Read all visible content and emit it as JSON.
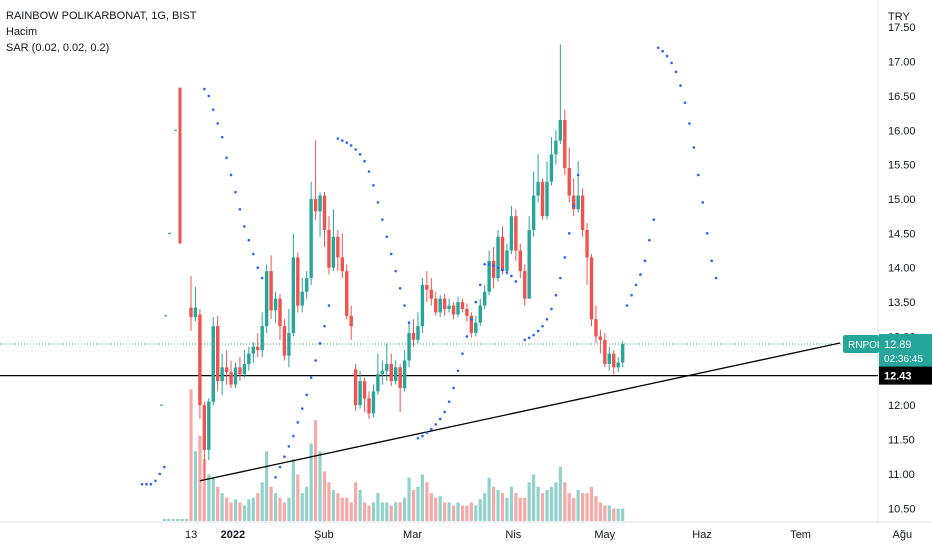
{
  "legend": {
    "title": "RAINBOW POLIKARBONAT, 1G, BIST",
    "volume_label": "Hacim",
    "sar_label": "SAR (0.02, 0.02, 0.2)"
  },
  "chart_data": {
    "type": "candlestick",
    "currency": "TRY",
    "y_ticks": [
      "17.50",
      "17.00",
      "16.50",
      "16.00",
      "15.50",
      "15.00",
      "14.50",
      "14.00",
      "13.50",
      "13.00",
      "12.50",
      "12.00",
      "11.50",
      "11.00",
      "10.50"
    ],
    "ylim": [
      10.3,
      17.75
    ],
    "x_ticks": [
      {
        "label": "13",
        "bold": false,
        "i": 0
      },
      {
        "label": "2022",
        "bold": true,
        "i": 8
      },
      {
        "label": "Şub",
        "bold": false,
        "i": 29
      },
      {
        "label": "Mar",
        "bold": false,
        "i": 49
      },
      {
        "label": "Nis",
        "bold": false,
        "i": 72
      },
      {
        "label": "May",
        "bold": false,
        "i": 92
      },
      {
        "label": "Haz",
        "bold": false,
        "i": 114
      },
      {
        "label": "Tem",
        "bold": false,
        "i": 136
      },
      {
        "label": "Ağu",
        "bold": false,
        "i": 159
      }
    ],
    "symbol_badge": "RNPOL",
    "last_price": "12.89",
    "countdown": "02:36:45",
    "hline_label": "12.43",
    "hline_value": 12.43,
    "trendline": [
      {
        "i": 2,
        "v": 10.9
      },
      {
        "i": 157,
        "v": 12.89
      }
    ],
    "first_bar": {
      "open": 16.62,
      "close": 14.35,
      "high": 16.62,
      "low": 14.35
    },
    "ohlc": [
      [
        13.42,
        13.28,
        13.88,
        13.08
      ],
      [
        13.28,
        13.42,
        13.72,
        13.22
      ],
      [
        13.32,
        12.0,
        13.4,
        11.8
      ],
      [
        12.0,
        11.35,
        12.05,
        10.92
      ],
      [
        11.35,
        12.05,
        12.1,
        11.2
      ],
      [
        12.05,
        13.15,
        13.28,
        12.0
      ],
      [
        13.15,
        12.35,
        13.3,
        12.2
      ],
      [
        12.35,
        12.55,
        12.75,
        12.15
      ],
      [
        12.55,
        12.48,
        12.8,
        12.3
      ],
      [
        12.48,
        12.3,
        12.65,
        12.25
      ],
      [
        12.3,
        12.55,
        12.62,
        12.25
      ],
      [
        12.55,
        12.45,
        12.7,
        12.35
      ],
      [
        12.45,
        12.6,
        12.8,
        12.4
      ],
      [
        12.6,
        12.75,
        12.85,
        12.5
      ],
      [
        12.75,
        12.85,
        12.92,
        12.62
      ],
      [
        12.85,
        12.8,
        13.05,
        12.7
      ],
      [
        12.8,
        13.15,
        13.35,
        12.7
      ],
      [
        13.15,
        13.95,
        14.05,
        13.05
      ],
      [
        13.95,
        13.38,
        14.18,
        13.25
      ],
      [
        13.38,
        13.55,
        13.65,
        13.2
      ],
      [
        13.55,
        13.15,
        13.62,
        12.95
      ],
      [
        13.15,
        12.72,
        13.25,
        12.65
      ],
      [
        12.72,
        13.05,
        13.4,
        12.55
      ],
      [
        13.05,
        14.15,
        14.5,
        13.0
      ],
      [
        14.15,
        13.45,
        14.22,
        13.35
      ],
      [
        13.45,
        13.65,
        13.85,
        13.35
      ],
      [
        13.65,
        13.85,
        13.95,
        13.55
      ],
      [
        13.85,
        15.0,
        15.25,
        13.75
      ],
      [
        15.0,
        14.82,
        15.85,
        14.7
      ],
      [
        14.82,
        15.05,
        15.1,
        14.45
      ],
      [
        15.05,
        14.55,
        15.1,
        14.3
      ],
      [
        14.55,
        14.0,
        14.75,
        13.9
      ],
      [
        14.0,
        14.45,
        14.85,
        13.95
      ],
      [
        14.45,
        14.15,
        14.55,
        13.95
      ],
      [
        14.15,
        13.95,
        14.5,
        13.85
      ],
      [
        13.95,
        13.3,
        14.05,
        13.25
      ],
      [
        13.3,
        13.15,
        13.45,
        12.95
      ],
      [
        12.52,
        12.0,
        12.6,
        11.92
      ],
      [
        12.0,
        12.35,
        12.5,
        11.95
      ],
      [
        12.35,
        12.1,
        12.4,
        11.9
      ],
      [
        12.1,
        11.88,
        12.2,
        11.8
      ],
      [
        11.88,
        12.2,
        12.3,
        11.82
      ],
      [
        12.2,
        12.45,
        12.75,
        12.15
      ],
      [
        12.45,
        12.5,
        12.65,
        12.3
      ],
      [
        12.5,
        12.6,
        12.9,
        12.35
      ],
      [
        12.6,
        12.35,
        12.75,
        12.28
      ],
      [
        12.35,
        12.55,
        12.65,
        12.3
      ],
      [
        12.55,
        12.25,
        12.6,
        11.9
      ],
      [
        12.25,
        12.65,
        12.8,
        12.2
      ],
      [
        12.65,
        13.05,
        13.2,
        12.55
      ],
      [
        13.05,
        12.95,
        13.25,
        12.85
      ],
      [
        12.95,
        13.15,
        13.35,
        12.9
      ],
      [
        13.15,
        13.75,
        13.85,
        13.05
      ],
      [
        13.75,
        13.68,
        13.95,
        13.5
      ],
      [
        13.68,
        13.55,
        13.85,
        13.45
      ],
      [
        13.55,
        13.35,
        13.65,
        13.3
      ],
      [
        13.35,
        13.55,
        13.6,
        13.28
      ],
      [
        13.55,
        13.4,
        13.62,
        13.3
      ],
      [
        13.4,
        13.45,
        13.55,
        13.35
      ],
      [
        13.45,
        13.32,
        13.5,
        13.25
      ],
      [
        13.32,
        13.5,
        13.58,
        13.28
      ],
      [
        13.5,
        13.4,
        13.55,
        13.35
      ],
      [
        13.4,
        13.3,
        13.48,
        13.22
      ],
      [
        13.3,
        13.05,
        13.35,
        12.98
      ],
      [
        13.05,
        13.2,
        13.3,
        13.0
      ],
      [
        13.2,
        13.45,
        13.55,
        13.15
      ],
      [
        13.45,
        13.65,
        13.75,
        13.4
      ],
      [
        13.65,
        14.1,
        14.25,
        13.6
      ],
      [
        14.1,
        13.85,
        14.3,
        13.7
      ],
      [
        13.85,
        14.45,
        14.55,
        13.8
      ],
      [
        14.45,
        13.95,
        14.6,
        13.9
      ],
      [
        13.95,
        14.25,
        14.35,
        13.9
      ],
      [
        14.25,
        14.75,
        14.9,
        14.2
      ],
      [
        14.75,
        14.25,
        14.85,
        14.1
      ],
      [
        14.25,
        13.95,
        14.35,
        13.85
      ],
      [
        13.95,
        13.55,
        14.05,
        13.45
      ],
      [
        13.55,
        14.55,
        14.75,
        13.55
      ],
      [
        14.55,
        15.05,
        15.4,
        14.45
      ],
      [
        15.05,
        15.25,
        15.65,
        14.95
      ],
      [
        15.25,
        14.75,
        15.3,
        14.7
      ],
      [
        14.75,
        15.25,
        15.55,
        14.7
      ],
      [
        15.25,
        15.65,
        15.9,
        15.2
      ],
      [
        15.65,
        15.85,
        16.0,
        15.5
      ],
      [
        15.85,
        16.15,
        17.25,
        15.8
      ],
      [
        16.15,
        15.45,
        16.3,
        15.35
      ],
      [
        15.45,
        15.05,
        15.75,
        14.95
      ],
      [
        15.05,
        14.85,
        15.3,
        14.75
      ],
      [
        14.85,
        15.05,
        15.55,
        14.8
      ],
      [
        15.05,
        14.55,
        15.15,
        14.45
      ],
      [
        14.55,
        14.15,
        14.65,
        13.75
      ],
      [
        14.15,
        13.25,
        14.2,
        13.15
      ],
      [
        13.25,
        13.0,
        13.45,
        12.9
      ],
      [
        13.0,
        12.95,
        13.1,
        12.75
      ],
      [
        12.95,
        12.6,
        13.05,
        12.55
      ],
      [
        12.6,
        12.75,
        12.85,
        12.5
      ],
      [
        12.75,
        12.55,
        12.8,
        12.45
      ],
      [
        12.55,
        12.62,
        12.7,
        12.48
      ],
      [
        12.62,
        12.89,
        12.93,
        12.55
      ]
    ],
    "volume": [
      0.85,
      0.45,
      0.55,
      0.4,
      0.3,
      0.28,
      0.22,
      0.18,
      0.15,
      0.12,
      0.14,
      0.12,
      0.1,
      0.14,
      0.15,
      0.18,
      0.25,
      0.45,
      0.22,
      0.18,
      0.15,
      0.12,
      0.15,
      0.4,
      0.3,
      0.18,
      0.22,
      0.5,
      0.65,
      0.45,
      0.32,
      0.25,
      0.2,
      0.18,
      0.15,
      0.15,
      0.12,
      0.25,
      0.2,
      0.12,
      0.1,
      0.12,
      0.18,
      0.12,
      0.12,
      0.1,
      0.12,
      0.12,
      0.15,
      0.28,
      0.2,
      0.22,
      0.3,
      0.25,
      0.18,
      0.15,
      0.16,
      0.12,
      0.12,
      0.1,
      0.12,
      0.1,
      0.1,
      0.12,
      0.1,
      0.14,
      0.18,
      0.28,
      0.22,
      0.2,
      0.18,
      0.15,
      0.22,
      0.18,
      0.15,
      0.15,
      0.25,
      0.3,
      0.22,
      0.18,
      0.2,
      0.22,
      0.25,
      0.35,
      0.25,
      0.18,
      0.15,
      0.2,
      0.18,
      0.18,
      0.22,
      0.16,
      0.12,
      0.1,
      0.1,
      0.08,
      0.08,
      0.08
    ],
    "sar": [
      {
        "i": -11,
        "v": 10.85
      },
      {
        "i": -10,
        "v": 10.85
      },
      {
        "i": -9,
        "v": 10.85
      },
      {
        "i": -8,
        "v": 10.9
      },
      {
        "i": -7,
        "v": 11.0
      },
      {
        "i": -6,
        "v": 11.1
      },
      {
        "i": 3,
        "v": 16.6
      },
      {
        "i": 4,
        "v": 16.5
      },
      {
        "i": 5,
        "v": 16.3
      },
      {
        "i": 6,
        "v": 16.1
      },
      {
        "i": 7,
        "v": 15.9
      },
      {
        "i": 8,
        "v": 15.6
      },
      {
        "i": 9,
        "v": 15.35
      },
      {
        "i": 10,
        "v": 15.1
      },
      {
        "i": 11,
        "v": 14.85
      },
      {
        "i": 12,
        "v": 14.6
      },
      {
        "i": 13,
        "v": 14.4
      },
      {
        "i": 14,
        "v": 14.2
      },
      {
        "i": 15,
        "v": 14.0
      },
      {
        "i": 16,
        "v": 13.85
      },
      {
        "i": 19,
        "v": 10.95
      },
      {
        "i": 20,
        "v": 11.1
      },
      {
        "i": 21,
        "v": 11.25
      },
      {
        "i": 22,
        "v": 11.4
      },
      {
        "i": 23,
        "v": 11.55
      },
      {
        "i": 24,
        "v": 11.75
      },
      {
        "i": 25,
        "v": 11.95
      },
      {
        "i": 26,
        "v": 12.15
      },
      {
        "i": 27,
        "v": 12.4
      },
      {
        "i": 28,
        "v": 12.65
      },
      {
        "i": 29,
        "v": 12.9
      },
      {
        "i": 30,
        "v": 13.15
      },
      {
        "i": 31,
        "v": 13.45
      },
      {
        "i": 33,
        "v": 15.88
      },
      {
        "i": 34,
        "v": 15.85
      },
      {
        "i": 35,
        "v": 15.82
      },
      {
        "i": 36,
        "v": 15.78
      },
      {
        "i": 37,
        "v": 15.72
      },
      {
        "i": 38,
        "v": 15.65
      },
      {
        "i": 39,
        "v": 15.55
      },
      {
        "i": 40,
        "v": 15.4
      },
      {
        "i": 41,
        "v": 15.2
      },
      {
        "i": 42,
        "v": 14.95
      },
      {
        "i": 43,
        "v": 14.7
      },
      {
        "i": 44,
        "v": 14.45
      },
      {
        "i": 45,
        "v": 14.2
      },
      {
        "i": 46,
        "v": 13.95
      },
      {
        "i": 47,
        "v": 13.7
      },
      {
        "i": 48,
        "v": 13.45
      },
      {
        "i": 49,
        "v": 13.2
      },
      {
        "i": 51,
        "v": 11.52
      },
      {
        "i": 52,
        "v": 11.55
      },
      {
        "i": 53,
        "v": 11.6
      },
      {
        "i": 54,
        "v": 11.65
      },
      {
        "i": 55,
        "v": 11.72
      },
      {
        "i": 56,
        "v": 11.8
      },
      {
        "i": 57,
        "v": 11.9
      },
      {
        "i": 58,
        "v": 12.05
      },
      {
        "i": 59,
        "v": 12.25
      },
      {
        "i": 60,
        "v": 12.5
      },
      {
        "i": 61,
        "v": 12.75
      },
      {
        "i": 62,
        "v": 13.0
      },
      {
        "i": 63,
        "v": 13.25
      },
      {
        "i": 64,
        "v": 13.5
      },
      {
        "i": 65,
        "v": 13.75
      },
      {
        "i": 66,
        "v": 14.05
      },
      {
        "i": 67,
        "v": 14.05
      },
      {
        "i": 68,
        "v": 14.03
      },
      {
        "i": 69,
        "v": 14.0
      },
      {
        "i": 70,
        "v": 13.97
      },
      {
        "i": 71,
        "v": 13.93
      },
      {
        "i": 72,
        "v": 13.88
      },
      {
        "i": 73,
        "v": 13.8
      },
      {
        "i": 75,
        "v": 12.95
      },
      {
        "i": 76,
        "v": 12.98
      },
      {
        "i": 77,
        "v": 13.02
      },
      {
        "i": 78,
        "v": 13.08
      },
      {
        "i": 79,
        "v": 13.15
      },
      {
        "i": 80,
        "v": 13.25
      },
      {
        "i": 81,
        "v": 13.4
      },
      {
        "i": 82,
        "v": 13.6
      },
      {
        "i": 83,
        "v": 13.85
      },
      {
        "i": 84,
        "v": 14.15
      },
      {
        "i": 85,
        "v": 14.5
      },
      {
        "i": 86,
        "v": 14.9
      },
      {
        "i": 87,
        "v": 15.35
      },
      {
        "i": 98,
        "v": 13.45
      },
      {
        "i": 99,
        "v": 13.6
      },
      {
        "i": 100,
        "v": 13.75
      },
      {
        "i": 101,
        "v": 13.9
      },
      {
        "i": 102,
        "v": 14.1
      },
      {
        "i": 103,
        "v": 14.4
      },
      {
        "i": 104,
        "v": 14.7
      },
      {
        "i": 105,
        "v": 17.2
      },
      {
        "i": 106,
        "v": 17.15
      },
      {
        "i": 107,
        "v": 17.08
      },
      {
        "i": 108,
        "v": 16.98
      },
      {
        "i": 109,
        "v": 16.85
      },
      {
        "i": 110,
        "v": 16.65
      },
      {
        "i": 111,
        "v": 16.4
      },
      {
        "i": 112,
        "v": 16.1
      },
      {
        "i": 113,
        "v": 15.75
      },
      {
        "i": 114,
        "v": 15.35
      },
      {
        "i": 115,
        "v": 14.95
      },
      {
        "i": 116,
        "v": 14.5
      },
      {
        "i": 117,
        "v": 14.1
      },
      {
        "i": 118,
        "v": 13.85
      }
    ],
    "volume_first_bar": {
      "vol": 0.05
    },
    "colors": {
      "up": "#26a69a",
      "down": "#ef5350",
      "up_vol": "#92d2cc",
      "down_vol": "#f7a9a7",
      "sar": "#2962ff",
      "line": "#000000"
    }
  }
}
